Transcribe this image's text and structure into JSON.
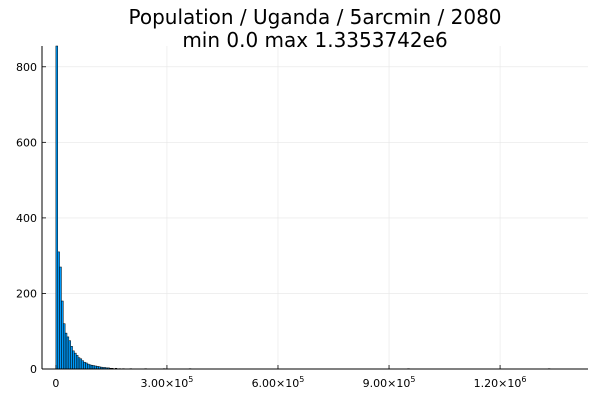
{
  "chart_data": {
    "type": "bar",
    "title": "Population / Uganda / 5arcmin / 2080",
    "subtitle": "min 0.0  max 1.3353742e6",
    "xlabel": "",
    "ylabel": "",
    "xlim": [
      -37500,
      1437500
    ],
    "ylim": [
      0,
      855
    ],
    "grid": true,
    "legend": "none",
    "bar_color": "#009AFA",
    "bin_width": 5000,
    "bins": [
      {
        "x": 0,
        "y": 855
      },
      {
        "x": 5000,
        "y": 310
      },
      {
        "x": 10000,
        "y": 270
      },
      {
        "x": 15000,
        "y": 180
      },
      {
        "x": 20000,
        "y": 120
      },
      {
        "x": 25000,
        "y": 95
      },
      {
        "x": 30000,
        "y": 85
      },
      {
        "x": 35000,
        "y": 75
      },
      {
        "x": 40000,
        "y": 60
      },
      {
        "x": 45000,
        "y": 48
      },
      {
        "x": 50000,
        "y": 42
      },
      {
        "x": 55000,
        "y": 36
      },
      {
        "x": 60000,
        "y": 30
      },
      {
        "x": 65000,
        "y": 27
      },
      {
        "x": 70000,
        "y": 22
      },
      {
        "x": 75000,
        "y": 18
      },
      {
        "x": 80000,
        "y": 16
      },
      {
        "x": 85000,
        "y": 13
      },
      {
        "x": 90000,
        "y": 11
      },
      {
        "x": 95000,
        "y": 10
      },
      {
        "x": 100000,
        "y": 9
      },
      {
        "x": 105000,
        "y": 8
      },
      {
        "x": 110000,
        "y": 7
      },
      {
        "x": 115000,
        "y": 6
      },
      {
        "x": 120000,
        "y": 5
      },
      {
        "x": 125000,
        "y": 4
      },
      {
        "x": 130000,
        "y": 4
      },
      {
        "x": 135000,
        "y": 3
      },
      {
        "x": 140000,
        "y": 3
      },
      {
        "x": 145000,
        "y": 2
      },
      {
        "x": 150000,
        "y": 2
      },
      {
        "x": 160000,
        "y": 2
      },
      {
        "x": 170000,
        "y": 1
      },
      {
        "x": 180000,
        "y": 1
      },
      {
        "x": 200000,
        "y": 1
      },
      {
        "x": 240000,
        "y": 1
      },
      {
        "x": 290000,
        "y": 1
      },
      {
        "x": 360000,
        "y": 1
      },
      {
        "x": 950000,
        "y": 1
      },
      {
        "x": 1330000,
        "y": 1
      }
    ],
    "y_ticks": [
      {
        "value": 0,
        "label": "0"
      },
      {
        "value": 200,
        "label": "200"
      },
      {
        "value": 400,
        "label": "400"
      },
      {
        "value": 600,
        "label": "600"
      },
      {
        "value": 800,
        "label": "800"
      }
    ],
    "x_ticks": [
      {
        "value": 0,
        "mantissa": "0",
        "exponent": ""
      },
      {
        "value": 300000,
        "mantissa": "3.00×10",
        "exponent": "5"
      },
      {
        "value": 600000,
        "mantissa": "6.00×10",
        "exponent": "5"
      },
      {
        "value": 900000,
        "mantissa": "9.00×10",
        "exponent": "5"
      },
      {
        "value": 1200000,
        "mantissa": "1.20×10",
        "exponent": "6"
      }
    ]
  }
}
